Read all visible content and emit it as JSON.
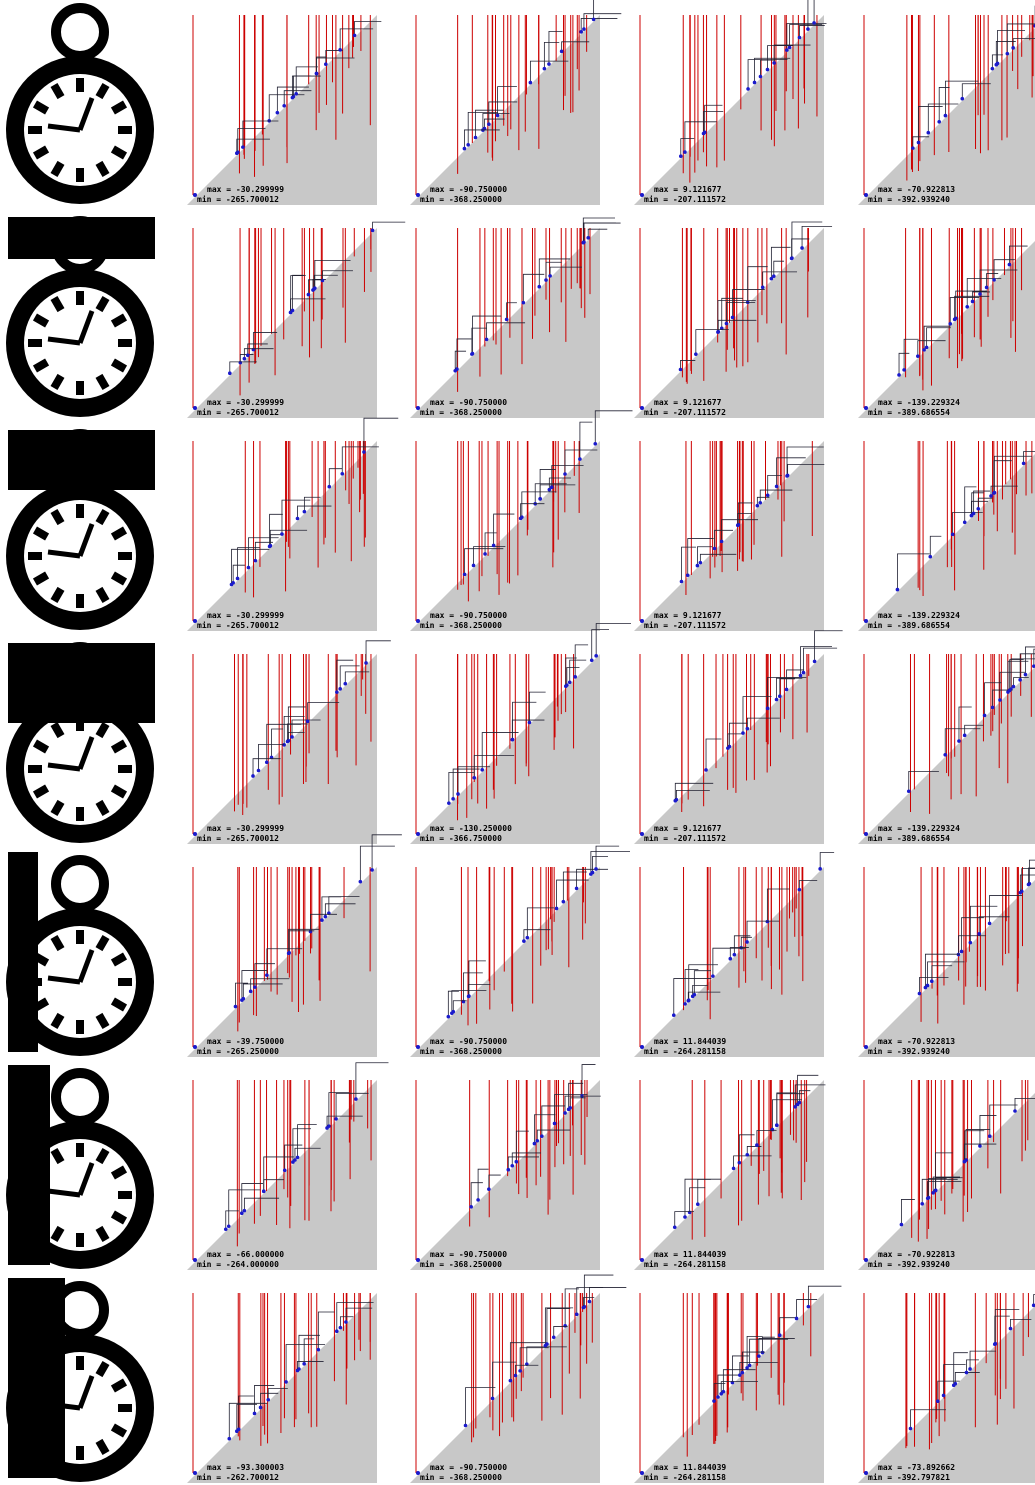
{
  "rows": [
    {
      "cells": [
        {
          "max": "max = -30.299999",
          "min": "min = -265.700012"
        },
        {
          "max": "max = -90.750000",
          "min": "min = -368.250000"
        },
        {
          "max": "max = 9.121677",
          "min": "min = -207.111572"
        },
        {
          "max": "max = -70.922813",
          "min": "min = -392.939240"
        }
      ]
    },
    {
      "cells": [
        {
          "max": "max = -30.299999",
          "min": "min = -265.700012"
        },
        {
          "max": "max = -90.750000",
          "min": "min = -368.250000"
        },
        {
          "max": "max = 9.121677",
          "min": "min = -207.111572"
        },
        {
          "max": "max = -139.229324",
          "min": "min = -389.686554"
        }
      ]
    },
    {
      "cells": [
        {
          "max": "max = -30.299999",
          "min": "min = -265.700012"
        },
        {
          "max": "max = -90.750000",
          "min": "min = -368.250000"
        },
        {
          "max": "max = 9.121677",
          "min": "min = -207.111572"
        },
        {
          "max": "max = -139.229324",
          "min": "min = -389.686554"
        }
      ]
    },
    {
      "cells": [
        {
          "max": "max = -30.299999",
          "min": "min = -265.700012"
        },
        {
          "max": "max = -130.250000",
          "min": "min = -366.750000"
        },
        {
          "max": "max = 9.121677",
          "min": "min = -207.111572"
        },
        {
          "max": "max = -139.229324",
          "min": "min = -389.686554"
        }
      ]
    },
    {
      "cells": [
        {
          "max": "max = -39.750000",
          "min": "min = -265.250000"
        },
        {
          "max": "max = -90.750000",
          "min": "min = -368.250000"
        },
        {
          "max": "max = 11.844039",
          "min": "min = -264.281158"
        },
        {
          "max": "max = -70.922813",
          "min": "min = -392.939240"
        }
      ]
    },
    {
      "cells": [
        {
          "max": "max = -66.000000",
          "min": "min = -264.000000"
        },
        {
          "max": "max = -90.750000",
          "min": "min = -368.250000"
        },
        {
          "max": "max = 11.844039",
          "min": "min = -264.281158"
        },
        {
          "max": "max = -70.922813",
          "min": "min = -392.939240"
        }
      ]
    },
    {
      "cells": [
        {
          "max": "max = -93.300003",
          "min": "min = -262.700012"
        },
        {
          "max": "max = -90.750000",
          "min": "min = -368.250000"
        },
        {
          "max": "max = 11.844039",
          "min": "min = -264.281158"
        },
        {
          "max": "max = -73.892662",
          "min": "min = -392.797821"
        }
      ]
    }
  ]
}
